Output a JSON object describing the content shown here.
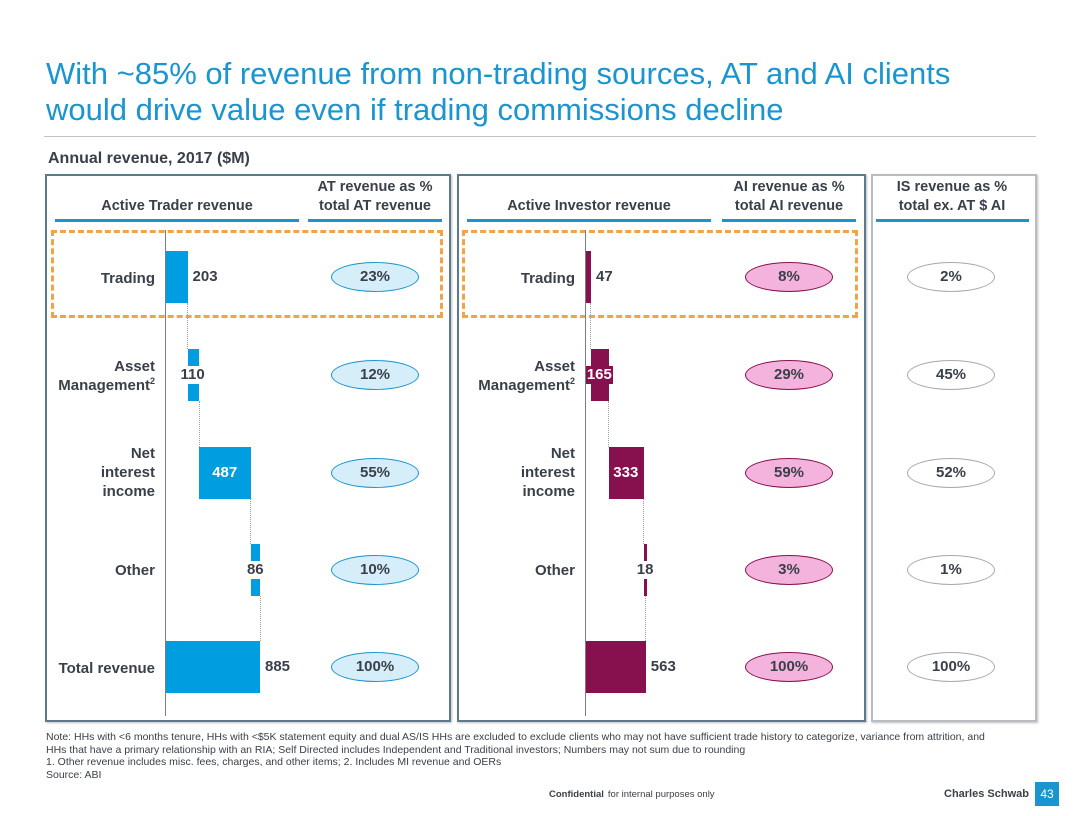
{
  "slide": {
    "title_line1": "With ~85% of revenue from non-trading sources, AT and AI clients",
    "title_line2": "would drive value even if trading commissions decline",
    "subtitle": "Annual revenue, 2017 ($M)"
  },
  "colors": {
    "brand_blue": "#1a95cf",
    "at_bar": "#009ee0",
    "ai_bar": "#87104f",
    "highlight_dash": "#f0a446"
  },
  "chart_data": [
    {
      "type": "bar",
      "subtype": "waterfall",
      "title": "Active Trader revenue",
      "units": "$M",
      "categories": [
        "Trading",
        "Asset Management²",
        "Net interest income",
        "Other",
        "Total revenue"
      ],
      "values": [
        203,
        110,
        487,
        86,
        885
      ],
      "is_total": [
        false,
        false,
        false,
        false,
        true
      ],
      "pct_header_line1": "AT revenue as %",
      "pct_header_line2": "total AT revenue",
      "pct_of_total": [
        "23%",
        "12%",
        "55%",
        "10%",
        "100%"
      ],
      "highlighted_category": "Trading"
    },
    {
      "type": "bar",
      "subtype": "waterfall",
      "title": "Active Investor revenue",
      "units": "$M",
      "categories": [
        "Trading",
        "Asset Management²",
        "Net interest income",
        "Other",
        "Total revenue"
      ],
      "values": [
        47,
        165,
        333,
        18,
        563
      ],
      "is_total": [
        false,
        false,
        false,
        false,
        true
      ],
      "pct_header_line1": "AI revenue as %",
      "pct_header_line2": "total AI revenue",
      "pct_of_total": [
        "8%",
        "29%",
        "59%",
        "3%",
        "100%"
      ],
      "highlighted_category": "Trading"
    },
    {
      "type": "table",
      "title_line1": "IS revenue as %",
      "title_line2": "total ex. AT $ AI",
      "categories": [
        "Trading",
        "Asset Management²",
        "Net interest income",
        "Other",
        "Total revenue"
      ],
      "pct_of_total": [
        "2%",
        "45%",
        "52%",
        "1%",
        "100%"
      ]
    }
  ],
  "labels": {
    "at_cats": [
      {
        "l1": "Trading"
      },
      {
        "l1": "Asset",
        "l2": "Management",
        "sup": "2"
      },
      {
        "l1": "Net",
        "l2": "interest",
        "l3": "income"
      },
      {
        "l1": "Other"
      },
      {
        "l1": "Total revenue"
      }
    ],
    "ai_cats": [
      {
        "l1": "Trading"
      },
      {
        "l1": "Asset",
        "l2": "Management",
        "sup": "2"
      },
      {
        "l1": "Net",
        "l2": "interest",
        "l3": "income"
      },
      {
        "l1": "Other"
      }
    ]
  },
  "notes": {
    "line1": "Note: HHs with <6 months tenure, HHs with <$5K statement equity and dual AS/IS HHs are excluded to exclude clients who may not have sufficient trade history to categorize, variance from attrition, and",
    "line2": "HHs that have a primary relationship with an RIA; Self Directed includes Independent and Traditional investors; Numbers may not sum due to rounding",
    "line3": "1. Other revenue includes misc. fees, charges, and other items; 2. Includes MI revenue and OERs",
    "line4": "Source: ABI"
  },
  "footer": {
    "confidential": "Confidential",
    "confidential_note": "for internal purposes only",
    "brand": "Charles Schwab",
    "page_number": "43"
  }
}
